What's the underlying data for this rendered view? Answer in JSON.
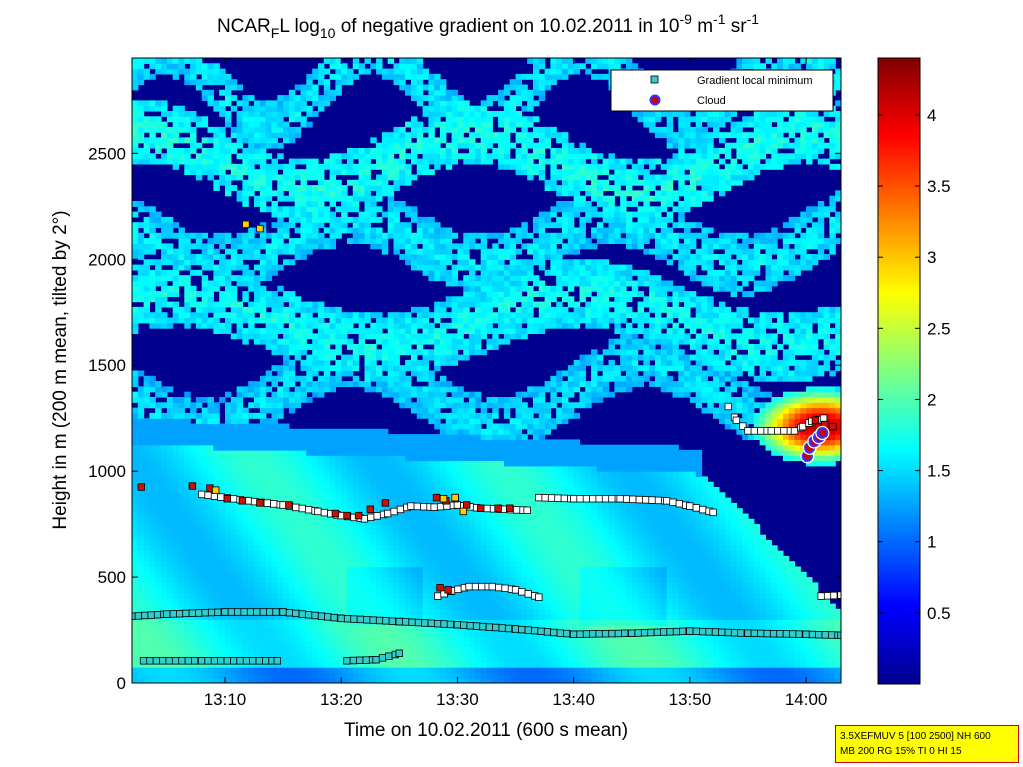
{
  "chart_data": {
    "type": "heatmap",
    "title": {
      "prefix": "NCAR",
      "prefix_sub": "F",
      "mid1": "L log",
      "log_sub": "10",
      "mid2": " of negative gradient on 10.02.2011 in 10",
      "exp1": "-9",
      "unit1": " m",
      "exp2": "-1",
      "unit2": " sr",
      "exp3": "-1"
    },
    "xlabel": "Time on 10.02.2011 (600 s mean)",
    "ylabel": "Height in m (200 m mean, tilted by 2°)",
    "x_ticks": [
      "13:10",
      "13:20",
      "13:30",
      "13:40",
      "13:50",
      "14:00"
    ],
    "x_tick_minutes": [
      10,
      20,
      30,
      40,
      50,
      60
    ],
    "xlim_minutes": [
      2,
      63
    ],
    "y_ticks": [
      0,
      500,
      1000,
      1500,
      2000,
      2500
    ],
    "ylim": [
      0,
      2950
    ],
    "colorbar": {
      "ticks": [
        "0.5",
        "1",
        "1.5",
        "2",
        "2.5",
        "3",
        "3.5",
        "4"
      ],
      "tick_values": [
        0.5,
        1,
        1.5,
        2,
        2.5,
        3,
        3.5,
        4
      ],
      "range": [
        0,
        4.4
      ]
    },
    "field_bands": [
      {
        "base": 2800,
        "width": 120,
        "amp": 180,
        "freq": 0.35,
        "phase": 0.0,
        "value": 1.6
      },
      {
        "base": 2450,
        "width": 150,
        "amp": 140,
        "freq": 0.22,
        "phase": 1.0,
        "value": 1.75
      },
      {
        "base": 2080,
        "width": 140,
        "amp": 120,
        "freq": 0.28,
        "phase": 2.1,
        "value": 1.6
      },
      {
        "base": 1700,
        "width": 160,
        "amp": 130,
        "freq": 0.18,
        "phase": 0.6,
        "value": 1.7
      },
      {
        "base": 1360,
        "width": 130,
        "amp": 150,
        "freq": 0.25,
        "phase": 2.7,
        "value": 1.55
      }
    ],
    "cloud_blob": {
      "t": 61,
      "h": 1200,
      "value": 4.2
    },
    "series": [
      {
        "name": "Gradient local minimum",
        "segments": [
          {
            "x": [
              2,
              5,
              10,
              15,
              20,
              25,
              30,
              35,
              40,
              45,
              50,
              55,
              60,
              63
            ],
            "y": [
              315,
              325,
              335,
              335,
              305,
              290,
              275,
              255,
              230,
              235,
              245,
              235,
              230,
              225
            ]
          },
          {
            "x": [
              3,
              8,
              14.5
            ],
            "y": [
              105,
              105,
              105
            ]
          },
          {
            "x": [
              20.5,
              23,
              25
            ],
            "y": [
              105,
              110,
              140
            ]
          },
          {
            "x": [
              8,
              12,
              15,
              18,
              20,
              22,
              24,
              26,
              28,
              30,
              32,
              34,
              36
            ],
            "y": [
              890,
              860,
              840,
              810,
              790,
              775,
              800,
              835,
              830,
              840,
              825,
              820,
              815
            ]
          },
          {
            "x": [
              37,
              40,
              44,
              48,
              50,
              52
            ],
            "y": [
              875,
              870,
              870,
              860,
              835,
              805
            ]
          },
          {
            "x": [
              28.3,
              29.5,
              31,
              33,
              35,
              37
            ],
            "y": [
              410,
              435,
              455,
              455,
              440,
              405
            ]
          },
          {
            "x": [
              53.3,
              54,
              55,
              57,
              59,
              59.7,
              60.5,
              61.5
            ],
            "y": [
              1305,
              1240,
              1190,
              1190,
              1190,
              1210,
              1235,
              1250
            ]
          },
          {
            "x": [
              61.3,
              63
            ],
            "y": [
              410,
              415
            ]
          }
        ]
      },
      {
        "name": "Cloud",
        "x": [
          60.1,
          60.3,
          60.7,
          61.1,
          61.4
        ],
        "y": [
          1070,
          1110,
          1140,
          1160,
          1180
        ]
      }
    ],
    "red_markers": [
      {
        "x": [
          2.8,
          7.2,
          8.7,
          10.2,
          11.5,
          13,
          15.5,
          19.5,
          20.5,
          21.5,
          22.5,
          23.8,
          28.2,
          29,
          29.8,
          30.8,
          32,
          33.5,
          34.5
        ],
        "y": [
          925,
          930,
          920,
          870,
          860,
          850,
          840,
          800,
          790,
          790,
          820,
          850,
          875,
          860,
          870,
          840,
          825,
          825,
          825
        ]
      },
      {
        "x": [
          28.5,
          29.2
        ],
        "y": [
          450,
          440
        ]
      },
      {
        "x": [
          60.8,
          61.6,
          62.3
        ],
        "y": [
          1240,
          1220,
          1210
        ]
      }
    ],
    "yellow_markers": {
      "x": [
        11.8,
        13,
        9.2,
        28.8,
        29.8,
        30.5
      ],
      "y": [
        2165,
        2145,
        910,
        870,
        875,
        810
      ]
    },
    "legend": {
      "entries": [
        "Gradient local minimum",
        "Cloud"
      ],
      "location": "top-right"
    }
  },
  "note": {
    "line1": "3.5XEFMUV 5 [100 2500] NH 600",
    "line2": "MB 200 RG 15% TI 0 HI 15"
  },
  "colors": {
    "white_marker": "#ffffff",
    "cyan_marker": "#33cccc",
    "red_marker": "#cc1100",
    "yellow_marker": "#ffcc00",
    "cloud_fill": "#cc0000",
    "cloud_edge": "#3333ff"
  }
}
